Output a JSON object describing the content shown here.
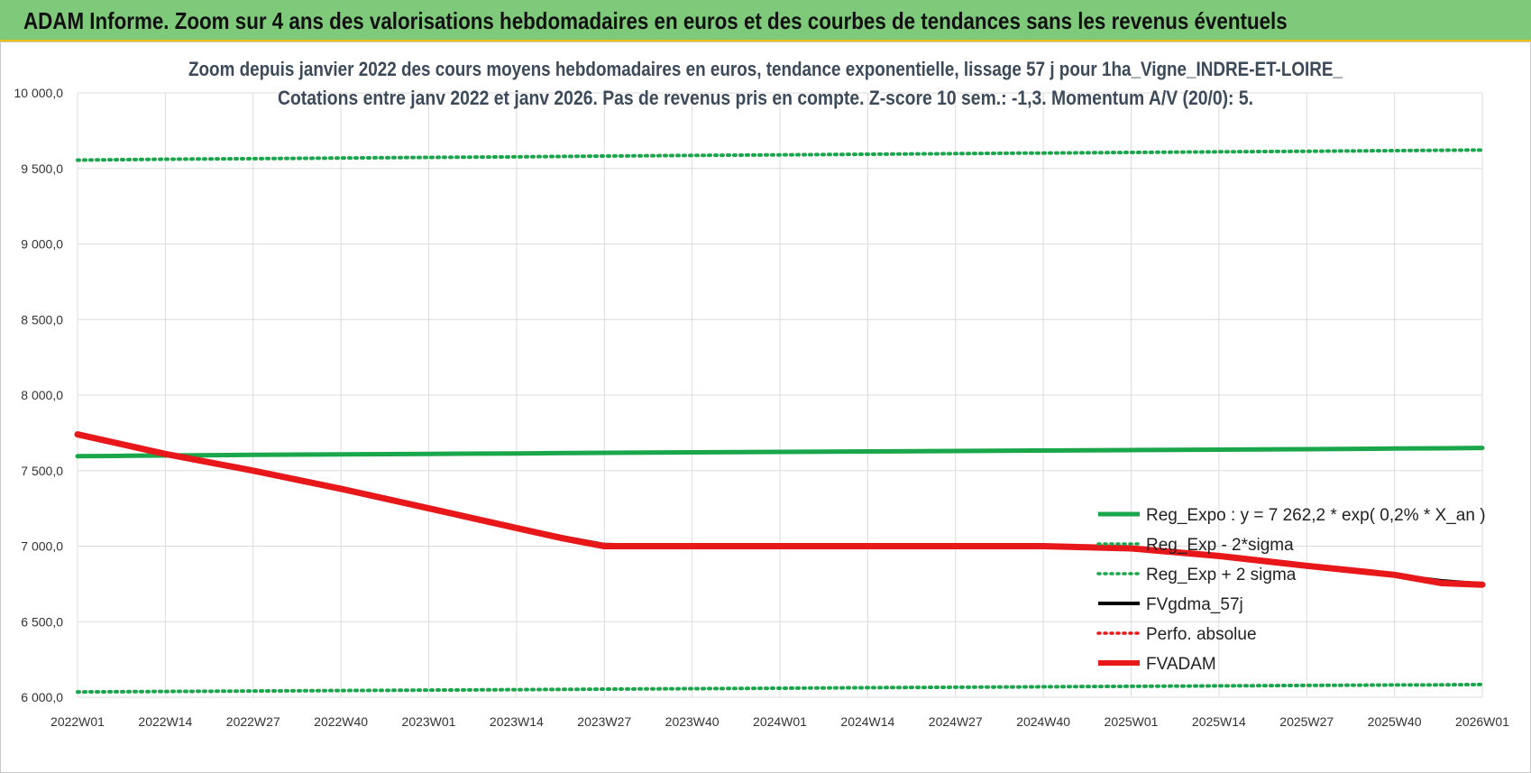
{
  "banner": {
    "title": "ADAM Informe. Zoom sur 4 ans des valorisations hebdomadaires en euros et des courbes de tendances sans les revenus éventuels"
  },
  "chart_data": {
    "type": "line",
    "title": "Zoom depuis janvier 2022 des cours moyens hebdomadaires en euros, tendance exponentielle, lissage 57 j pour 1ha_Vigne_INDRE-ET-LOIRE_",
    "subtitle": "Cotations entre janv 2022 et janv 2026. Pas de revenus pris en compte. Z-score 10 sem.: -1,3. Momentum A/V (20/0): 5.",
    "xlabel": "",
    "ylabel": "",
    "ylim": [
      6000,
      10000
    ],
    "y_ticks": [
      "6 000,0",
      "6 500,0",
      "7 000,0",
      "7 500,0",
      "8 000,0",
      "8 500,0",
      "9 000,0",
      "9 500,0",
      "10 000,0"
    ],
    "x_ticks": [
      "2022W01",
      "2022W14",
      "2022W27",
      "2022W40",
      "2023W01",
      "2023W14",
      "2023W27",
      "2023W40",
      "2024W01",
      "2024W14",
      "2024W27",
      "2024W40",
      "2025W01",
      "2025W14",
      "2025W27",
      "2025W40",
      "2026W01"
    ],
    "grid": true,
    "legend_position": "bottom-right",
    "x_index": [
      0,
      8,
      13,
      26,
      39,
      52,
      65,
      72,
      78,
      91,
      104,
      117,
      130,
      139,
      143,
      156,
      169,
      182,
      195,
      202,
      208
    ],
    "series": [
      {
        "name": "Reg_Expo : y = 7 262,2 * exp( 0,2% *  X_an )",
        "color": "#1aa64a",
        "style": "solid",
        "width": 5,
        "values": [
          7595,
          7598,
          7600,
          7604,
          7607,
          7611,
          7614,
          7616,
          7618,
          7621,
          7624,
          7627,
          7630,
          7632,
          7633,
          7636,
          7639,
          7642,
          7646,
          7648,
          7650
        ]
      },
      {
        "name": "Reg_Exp - 2*sigma",
        "color": "#1aa64a",
        "style": "dotted",
        "width": 4,
        "values": [
          6035,
          6037,
          6038,
          6041,
          6044,
          6047,
          6050,
          6052,
          6054,
          6057,
          6060,
          6063,
          6066,
          6068,
          6069,
          6072,
          6075,
          6078,
          6081,
          6082,
          6084
        ]
      },
      {
        "name": "Reg_Exp + 2 sigma",
        "color": "#1aa64a",
        "style": "dotted",
        "width": 4,
        "values": [
          9555,
          9559,
          9561,
          9565,
          9569,
          9573,
          9577,
          9580,
          9582,
          9586,
          9590,
          9594,
          9598,
          9601,
          9602,
          9606,
          9610,
          9614,
          9618,
          9620,
          9622
        ]
      },
      {
        "name": "FVgdma_57j",
        "color": "#000000",
        "style": "solid",
        "width": 4,
        "values": [
          7740,
          7660,
          7610,
          7500,
          7380,
          7250,
          7120,
          7060,
          7010,
          7000,
          7000,
          7000,
          7000,
          7000,
          7000,
          6985,
          6935,
          6870,
          6810,
          6770,
          6750
        ]
      },
      {
        "name": "Perfo. absolue",
        "color": "#e8171a",
        "style": "dotted",
        "width": 3,
        "values": []
      },
      {
        "name": "FVADAM",
        "color": "#e8171a",
        "style": "solid",
        "width": 7,
        "values": [
          7740,
          7660,
          7610,
          7500,
          7380,
          7250,
          7120,
          7050,
          7000,
          7000,
          7000,
          7000,
          7000,
          7000,
          7000,
          6985,
          6935,
          6870,
          6810,
          6755,
          6745
        ]
      }
    ]
  }
}
